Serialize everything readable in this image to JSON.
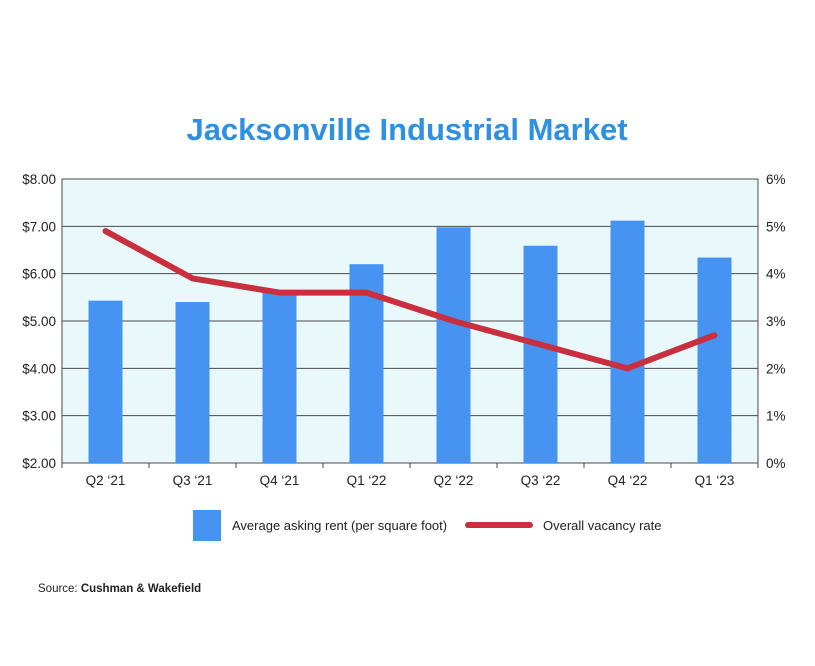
{
  "colors": {
    "title": "#2f8fe0",
    "plot_bg": "#e8f8fb",
    "bar": "#4793f2",
    "line": "#c8303f",
    "grid": "#4a4a4a",
    "text": "#222222"
  },
  "source": {
    "label": "Source: ",
    "name": "Cushman & Wakefield"
  },
  "chart_data": {
    "type": "bar",
    "title": "Jacksonville Industrial Market",
    "categories": [
      "Q2 ‘21",
      "Q3 ‘21",
      "Q4 ‘21",
      "Q1 ‘22",
      "Q2 ‘22",
      "Q3 ‘22",
      "Q4 ‘22",
      "Q1 ‘23"
    ],
    "series": [
      {
        "name": "Average asking rent (per square foot)",
        "type": "bar",
        "axis": "left",
        "values": [
          5.43,
          5.4,
          5.62,
          6.2,
          6.98,
          6.59,
          7.12,
          6.34
        ]
      },
      {
        "name": "Overall vacancy rate",
        "type": "line",
        "axis": "right",
        "values": [
          4.9,
          3.9,
          3.6,
          3.6,
          3.0,
          2.5,
          2.0,
          2.7
        ]
      }
    ],
    "y_left": {
      "min": 2.0,
      "max": 8.0,
      "ticks": [
        2,
        3,
        4,
        5,
        6,
        7,
        8
      ],
      "tick_labels": [
        "$2.00",
        "$3.00",
        "$4.00",
        "$5.00",
        "$6.00",
        "$7.00",
        "$8.00"
      ]
    },
    "y_right": {
      "min": 0,
      "max": 6,
      "ticks": [
        0,
        1,
        2,
        3,
        4,
        5,
        6
      ],
      "tick_labels": [
        "0%",
        "1%",
        "2%",
        "3%",
        "4%",
        "5%",
        "6%"
      ]
    },
    "grid": true,
    "legend_position": "bottom"
  }
}
